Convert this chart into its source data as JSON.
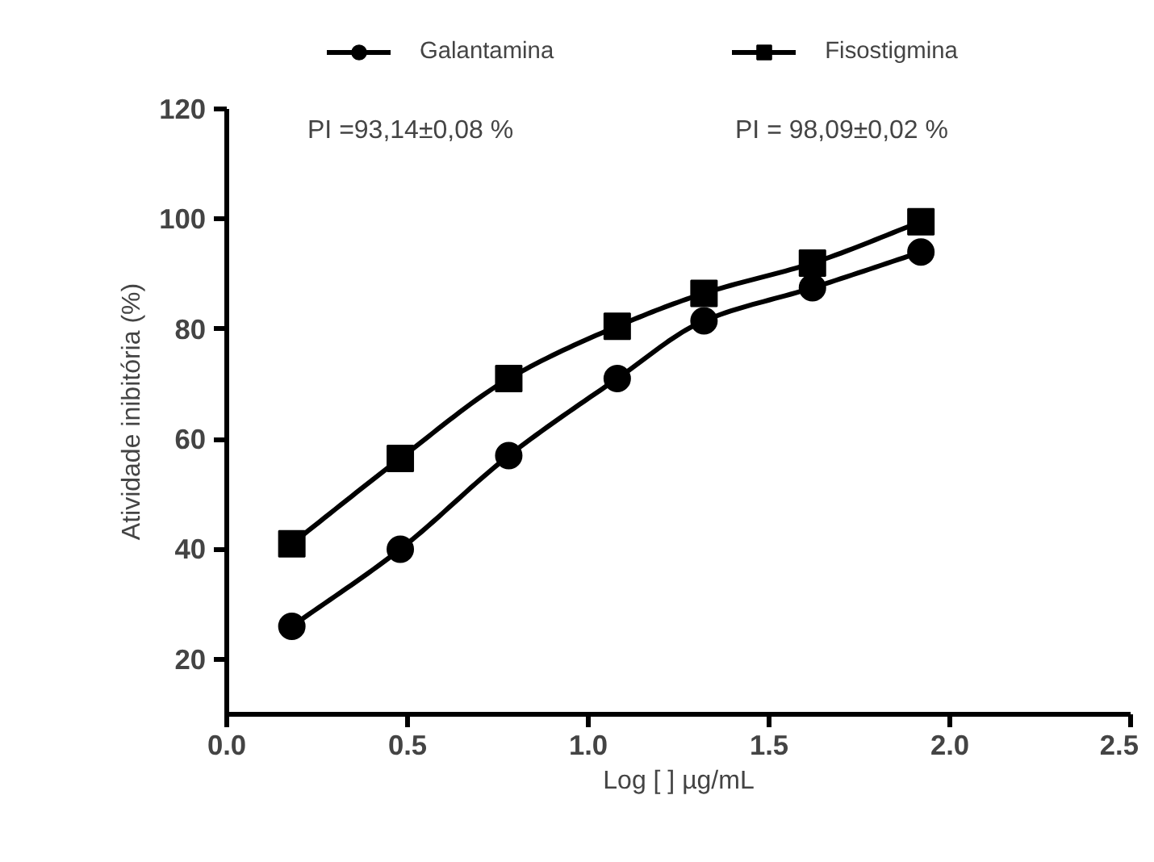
{
  "chart_data": {
    "type": "line",
    "xlabel": "Log [ ] µg/mL",
    "ylabel": "Atividade inibitória (%)",
    "x": [
      0.18,
      0.48,
      0.78,
      1.08,
      1.32,
      1.62,
      1.92
    ],
    "series": [
      {
        "name": "Galantamina",
        "color": "#000000",
        "marker": "circle",
        "values": [
          26,
          40,
          57,
          71,
          81.5,
          87.5,
          94
        ]
      },
      {
        "name": "Fisostigmina",
        "color": "#000000",
        "marker": "square",
        "values": [
          41,
          56.5,
          71,
          80.5,
          86.5,
          92,
          99.5
        ]
      }
    ],
    "annotations": [
      "PI =93,14±0,08 %",
      "PI = 98,09±0,02 %"
    ],
    "xlim": [
      0,
      2.5
    ],
    "ylim": [
      10,
      120
    ],
    "xticks": [
      {
        "value": 0,
        "label": "0.0"
      },
      {
        "value": 0.5,
        "label": "0.5"
      },
      {
        "value": 1,
        "label": "1.0"
      },
      {
        "value": 1.5,
        "label": "1.5"
      },
      {
        "value": 2,
        "label": "2.0"
      },
      {
        "value": 2.5,
        "label": "2.5"
      }
    ],
    "yticks": [
      20,
      40,
      60,
      80,
      100,
      120
    ],
    "grid": false,
    "legend": "top",
    "line_style": "solid"
  }
}
